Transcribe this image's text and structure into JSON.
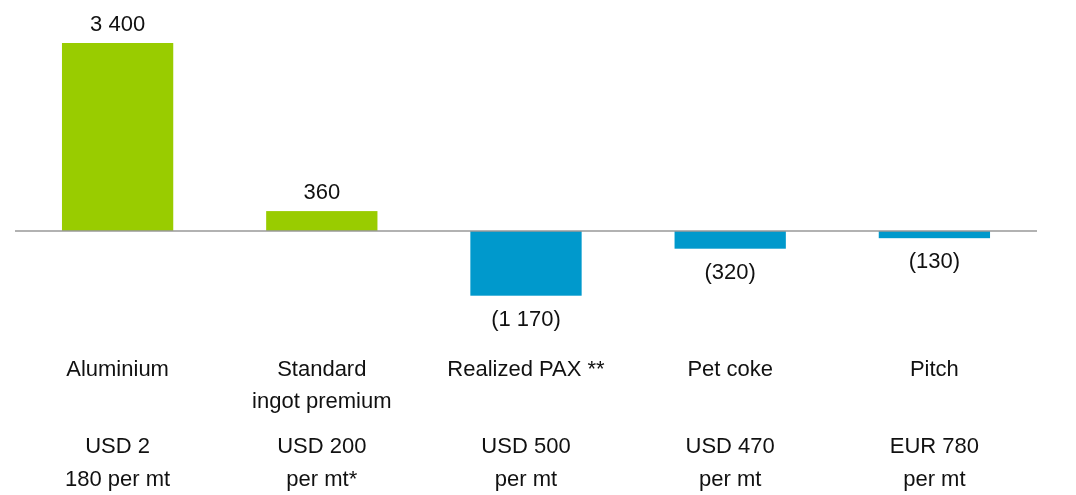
{
  "chart_data": {
    "type": "bar",
    "categories": [
      "Aluminium",
      "Standard ingot premium",
      "Realized PAX **",
      "Pet coke",
      "Pitch"
    ],
    "values": [
      3400,
      360,
      -1170,
      -320,
      -130
    ],
    "colors": [
      "#99cc00",
      "#99cc00",
      "#0099cc",
      "#0099cc",
      "#0099cc"
    ],
    "value_labels": [
      "3 400",
      "360",
      "(1 170)",
      "(320)",
      "(130)"
    ],
    "annotations": [
      "USD 2 180 per mt",
      "USD 200 per mt*",
      "USD 500 per mt",
      "USD 470 per mt",
      "EUR 780 per mt"
    ]
  }
}
